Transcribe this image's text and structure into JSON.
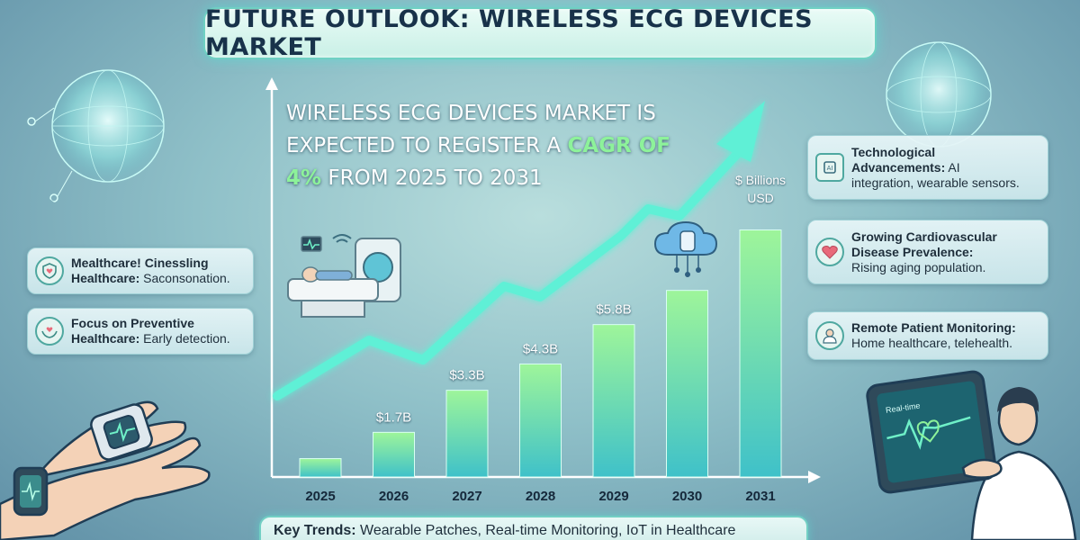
{
  "title": "FUTURE OUTLOOK: WIRELESS ECG DEVICES MARKET",
  "headline": {
    "line1": "WIRELESS ECG DEVICES MARKET IS",
    "line2_pre": "EXPECTED TO REGISTER A ",
    "line2_hl": "CAGR OF",
    "line3_hl": "4%",
    "line3_post": " FROM 2025 TO 2031"
  },
  "unit_label_1": "$ Billions",
  "unit_label_2": "USD",
  "left_cards": [
    {
      "title": "Mealthcare! Cinessling",
      "title2": "Healthcare:",
      "text": " Saconsonation.",
      "icon": "shield-heart-icon"
    },
    {
      "title": "Focus on Preventive",
      "title2": "Healthcare:",
      "text": " Early detection.",
      "icon": "hands-heart-icon"
    }
  ],
  "right_cards": [
    {
      "title": "Technological",
      "title2": "Advancements:",
      "text": " AI",
      "text2": "integration, wearable sensors.",
      "icon": "ai-chip-icon"
    },
    {
      "title": "Growing Cardiovascular",
      "title2": "Disease Prevalence:",
      "text": "",
      "text2": "Rising aging population.",
      "icon": "heart-icon"
    },
    {
      "title": "Remote Patient Monitoring:",
      "title2": "",
      "text": "",
      "text2": "Home healthcare, telehealth.",
      "icon": "doctor-icon"
    }
  ],
  "trends": {
    "label": "Key Trends:",
    "text": " Wearable Patches, Real-time Monitoring, IoT in Healthcare"
  },
  "tablet_label": "Real-time",
  "chart_data": {
    "type": "bar",
    "categories": [
      "2025",
      "2026",
      "2027",
      "2028",
      "2029",
      "2030",
      "2031"
    ],
    "values": [
      0.7,
      1.7,
      3.3,
      4.3,
      5.8,
      7.1,
      9.4
    ],
    "value_labels": [
      "",
      "$1.7B",
      "$3.3B",
      "$4.3B",
      "$5.8B",
      "",
      ""
    ],
    "ylabel": "$ Billions USD",
    "ylim": [
      0,
      10
    ],
    "trend_arrow": true,
    "grid": false
  },
  "colors": {
    "bar_bottom": "#3fc1c9",
    "bar_top": "#9ef59a",
    "arrow": "#5ff0d6",
    "accent": "#8df29a"
  }
}
